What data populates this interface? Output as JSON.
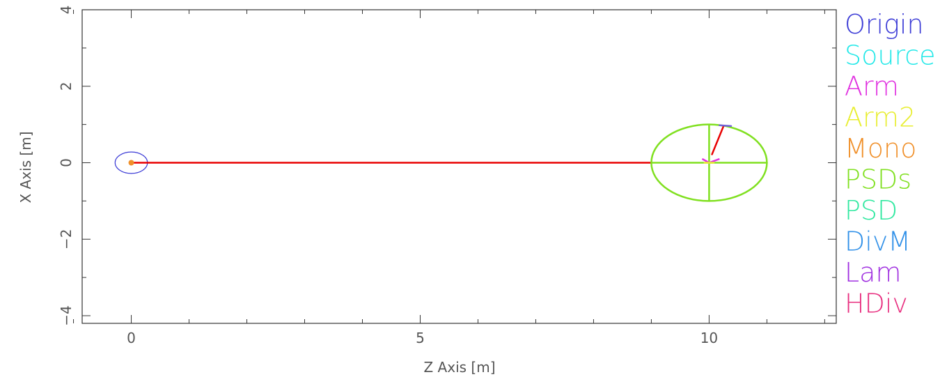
{
  "chart_data": {
    "type": "scatter",
    "xlabel": "Z Axis [m]",
    "ylabel": "X Axis [m]",
    "xlim": [
      -0.85,
      12.2
    ],
    "ylim": [
      -4.2,
      4.0
    ],
    "x_ticks": [
      {
        "value": 0,
        "label": "0"
      },
      {
        "value": 5,
        "label": "5"
      },
      {
        "value": 10,
        "label": "10"
      }
    ],
    "y_ticks": [
      {
        "value": 4,
        "label": "4"
      },
      {
        "value": 2,
        "label": "2"
      },
      {
        "value": 0,
        "label": "0"
      },
      {
        "value": -2,
        "label": "−2"
      },
      {
        "value": -4,
        "label": "−4"
      }
    ],
    "x_minor_ticks": [
      -1,
      0,
      1,
      2,
      3,
      4,
      5,
      6,
      7,
      8,
      9,
      10,
      11,
      12
    ],
    "y_minor_ticks": [
      -4,
      -3,
      -2,
      -1,
      0,
      1,
      2,
      3,
      4
    ],
    "grid": false,
    "legend_position": "right, clipped",
    "legend": [
      {
        "label": "Origin",
        "color": "#3b3bd6"
      },
      {
        "label": "Source",
        "color": "#22e8e8"
      },
      {
        "label": "Arm",
        "color": "#e030e0"
      },
      {
        "label": "Arm2",
        "color": "#e8ee30"
      },
      {
        "label": "Mono",
        "color": "#f0902a"
      },
      {
        "label": "PSDs",
        "color": "#80e020"
      },
      {
        "label": "PSD",
        "color": "#30e8a0"
      },
      {
        "label": "DivM",
        "color": "#3090e8"
      },
      {
        "label": "Lam",
        "color": "#a030e0"
      },
      {
        "label": "HDiv",
        "color": "#e83080"
      }
    ],
    "elements": [
      {
        "name": "origin-circle",
        "shape": "ellipse",
        "color": "#3b3bd6",
        "cx": 0,
        "cy": 0,
        "rx": 0.28,
        "ry": 0.28
      },
      {
        "name": "source-point",
        "shape": "dot",
        "color": "#f0902a",
        "x": 0,
        "y": 0
      },
      {
        "name": "beam-line",
        "shape": "line",
        "color": "#e80000",
        "points": [
          [
            0,
            0
          ],
          [
            9.0,
            0
          ]
        ]
      },
      {
        "name": "detector-ring",
        "shape": "ellipse",
        "color": "#80e020",
        "cx": 10,
        "cy": 0,
        "rx": 1.0,
        "ry": 1.0
      },
      {
        "name": "detector-horizontal",
        "shape": "line",
        "color": "#80e020",
        "points": [
          [
            9.0,
            0
          ],
          [
            11.0,
            0
          ]
        ]
      },
      {
        "name": "detector-vertical",
        "shape": "line",
        "color": "#80e020",
        "points": [
          [
            10,
            1.0
          ],
          [
            10,
            -1.0
          ]
        ]
      },
      {
        "name": "scattered-beam",
        "shape": "line",
        "color": "#e80000",
        "points": [
          [
            10.05,
            0.22
          ],
          [
            10.25,
            0.96
          ]
        ]
      },
      {
        "name": "sample-mark-magenta",
        "shape": "polyline",
        "color": "#e030e0",
        "points": [
          [
            9.88,
            0.1
          ],
          [
            10.0,
            0.0
          ],
          [
            10.18,
            0.1
          ]
        ]
      },
      {
        "name": "sample-mark-yellow",
        "shape": "line",
        "color": "#e8ee30",
        "points": [
          [
            9.92,
            0.0
          ],
          [
            10.08,
            0.0
          ]
        ]
      },
      {
        "name": "divergence-mark",
        "shape": "line",
        "color": "#7060d8",
        "points": [
          [
            10.18,
            0.98
          ],
          [
            10.38,
            0.96
          ]
        ]
      }
    ]
  }
}
